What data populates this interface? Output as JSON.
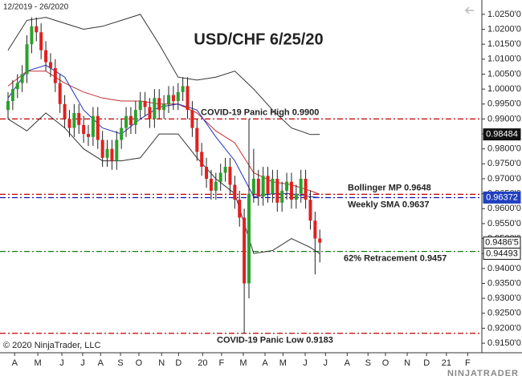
{
  "header": {
    "period": "12/2019 - 26/2020",
    "copyright": "© 2020 NinjaTrader, LLC",
    "logo": "NINJATRADER"
  },
  "chart_data": {
    "type": "candlestick",
    "title": "USD/CHF 6/25/20",
    "up_color": "#2ca02c",
    "down_color": "#e02020",
    "x": [
      12,
      13,
      14,
      15,
      16,
      17,
      18,
      19,
      20,
      21,
      22,
      23,
      24,
      25,
      26,
      27,
      28,
      29,
      30,
      31,
      32,
      33,
      34,
      35,
      36,
      37,
      38,
      39,
      40,
      41,
      42,
      43,
      44,
      45,
      46,
      47,
      48,
      49,
      50,
      51,
      52,
      53,
      54,
      55,
      56,
      57,
      58,
      59,
      60,
      61,
      62,
      63,
      64,
      65,
      66,
      67,
      68,
      69,
      70,
      71,
      72,
      73,
      74,
      75,
      76,
      77,
      78
    ],
    "open": [
      0.993,
      0.996,
      1.0,
      1.002,
      1.005,
      1.015,
      1.021,
      1.019,
      1.013,
      1.009,
      1.007,
      1.002,
      0.995,
      0.99,
      0.987,
      0.992,
      0.988,
      0.985,
      0.984,
      0.991,
      0.983,
      0.977,
      0.98,
      0.976,
      0.983,
      0.987,
      0.991,
      0.988,
      0.993,
      0.996,
      0.994,
      0.99,
      0.997,
      0.993,
      0.995,
      0.998,
      0.996,
      0.999,
      1.001,
      0.993,
      0.987,
      0.979,
      0.974,
      0.97,
      0.966,
      0.969,
      0.972,
      0.974,
      0.968,
      0.963,
      0.957,
      0.935,
      0.965,
      0.97,
      0.964,
      0.971,
      0.965,
      0.97,
      0.962,
      0.966,
      0.969,
      0.963,
      0.965,
      0.97,
      0.963,
      0.956,
      0.95
    ],
    "high": [
      0.999,
      1.003,
      1.005,
      1.008,
      1.018,
      1.024,
      1.024,
      1.022,
      1.016,
      1.012,
      1.01,
      1.005,
      0.998,
      0.993,
      0.995,
      0.995,
      0.991,
      0.988,
      0.994,
      0.994,
      0.986,
      0.983,
      0.983,
      0.986,
      0.99,
      0.994,
      0.994,
      0.996,
      0.999,
      0.999,
      0.997,
      1.0,
      1.0,
      0.998,
      1.001,
      1.001,
      1.002,
      1.004,
      1.004,
      0.996,
      0.99,
      0.982,
      0.977,
      0.973,
      0.972,
      0.975,
      0.977,
      0.977,
      0.971,
      0.966,
      0.96,
      0.99,
      0.98,
      0.973,
      0.974,
      0.974,
      0.973,
      0.973,
      0.969,
      0.972,
      0.972,
      0.968,
      0.973,
      0.973,
      0.966,
      0.959,
      0.953
    ],
    "low": [
      0.99,
      0.993,
      0.997,
      0.999,
      1.002,
      1.012,
      1.016,
      1.01,
      1.006,
      1.004,
      0.999,
      0.992,
      0.987,
      0.984,
      0.984,
      0.985,
      0.982,
      0.981,
      0.981,
      0.98,
      0.974,
      0.974,
      0.973,
      0.973,
      0.98,
      0.984,
      0.985,
      0.985,
      0.99,
      0.991,
      0.987,
      0.987,
      0.99,
      0.99,
      0.992,
      0.993,
      0.993,
      0.996,
      0.99,
      0.984,
      0.976,
      0.971,
      0.967,
      0.963,
      0.963,
      0.966,
      0.969,
      0.965,
      0.96,
      0.954,
      0.9183,
      0.93,
      0.962,
      0.961,
      0.961,
      0.962,
      0.962,
      0.959,
      0.959,
      0.963,
      0.96,
      0.96,
      0.962,
      0.96,
      0.953,
      0.938,
      0.942
    ],
    "close": [
      0.996,
      1.0,
      1.002,
      1.005,
      1.015,
      1.021,
      1.019,
      1.013,
      1.009,
      1.007,
      1.002,
      0.995,
      0.99,
      0.987,
      0.992,
      0.988,
      0.985,
      0.984,
      0.991,
      0.983,
      0.977,
      0.98,
      0.976,
      0.983,
      0.987,
      0.991,
      0.988,
      0.993,
      0.996,
      0.994,
      0.99,
      0.997,
      0.993,
      0.995,
      0.998,
      0.996,
      0.999,
      1.001,
      0.993,
      0.987,
      0.979,
      0.974,
      0.97,
      0.966,
      0.969,
      0.972,
      0.974,
      0.968,
      0.963,
      0.957,
      0.935,
      0.965,
      0.97,
      0.964,
      0.971,
      0.965,
      0.97,
      0.962,
      0.966,
      0.969,
      0.963,
      0.965,
      0.97,
      0.963,
      0.956,
      0.95,
      0.94865
    ],
    "lines": [
      {
        "color": "#333333",
        "x": [
          12,
          16,
          20,
          24,
          28,
          32,
          36,
          40,
          44,
          48,
          52,
          56,
          60,
          64,
          68,
          72,
          76,
          78
        ],
        "values": [
          1.013,
          1.023,
          1.024,
          1.022,
          1.02,
          1.021,
          1.023,
          1.025,
          1.015,
          1.004,
          1.003,
          1.004,
          1.006,
          1.0,
          0.993,
          0.987,
          0.9848,
          0.98484
        ]
      },
      {
        "color": "#333333",
        "x": [
          12,
          16,
          20,
          24,
          28,
          32,
          36,
          40,
          44,
          48,
          52,
          56,
          60,
          64,
          68,
          72,
          76,
          78
        ],
        "values": [
          0.99,
          0.986,
          0.992,
          0.987,
          0.98,
          0.976,
          0.976,
          0.977,
          0.985,
          0.985,
          0.977,
          0.97,
          0.965,
          0.945,
          0.946,
          0.95,
          0.947,
          0.94493
        ]
      },
      {
        "color": "#c03030",
        "x": [
          12,
          16,
          20,
          24,
          28,
          32,
          36,
          40,
          44,
          48,
          52,
          56,
          60,
          64,
          68,
          72,
          76,
          78
        ],
        "values": [
          1.001,
          1.006,
          1.006,
          1.002,
          0.999,
          0.997,
          0.996,
          0.996,
          0.995,
          0.995,
          0.992,
          0.986,
          0.982,
          0.972,
          0.969,
          0.968,
          0.966,
          0.9648
        ]
      },
      {
        "color": "#2030c0",
        "x": [
          12,
          16,
          20,
          24,
          28,
          32,
          36,
          40,
          44,
          48,
          52,
          56,
          60,
          64,
          68,
          72,
          76,
          78
        ],
        "values": [
          0.997,
          1.006,
          1.008,
          1.004,
          0.993,
          0.987,
          0.985,
          0.99,
          0.994,
          0.995,
          0.993,
          0.984,
          0.976,
          0.964,
          0.965,
          0.965,
          0.964,
          0.96372
        ]
      }
    ],
    "levels": [
      {
        "value": 0.99,
        "label": "COVID-19 Panic High 0.9900",
        "color": "#c00000",
        "label_pos": "above"
      },
      {
        "value": 0.9648,
        "label": "Bollinger MP 0.9648",
        "color": "#c00000",
        "label_pos": "above"
      },
      {
        "value": 0.9637,
        "label": "Weekly SMA  0.9637",
        "color": "#1010b0",
        "label_pos": "below"
      },
      {
        "value": 0.9457,
        "label": "62% Retracement 0.9457",
        "color": "#108010",
        "label_pos": "below"
      },
      {
        "value": 0.9183,
        "label": "COVID-19 Panic Low 0.9183",
        "color": "#c00000",
        "label_pos": "below"
      }
    ],
    "price_markers": [
      {
        "value": 0.98484,
        "label": "0.98484",
        "style": "dark"
      },
      {
        "value": 0.96372,
        "label": "0.96372",
        "style": "blue"
      },
      {
        "value": 0.94865,
        "label": "0.9486'5",
        "style": "light"
      },
      {
        "value": 0.94493,
        "label": "0.94493",
        "style": "light"
      }
    ],
    "xlim": [
      10.3,
      112.3
    ],
    "ylim": [
      0.9118,
      1.0298
    ],
    "xticks": [
      {
        "value": 13.4,
        "label": "A"
      },
      {
        "value": 18.3,
        "label": "M"
      },
      {
        "value": 23.4,
        "label": "J"
      },
      {
        "value": 27.8,
        "label": "J"
      },
      {
        "value": 31.6,
        "label": "A"
      },
      {
        "value": 35.8,
        "label": "S"
      },
      {
        "value": 39.7,
        "label": "O"
      },
      {
        "value": 44.5,
        "label": "N"
      },
      {
        "value": 48.1,
        "label": "D"
      },
      {
        "value": 53.2,
        "label": "20"
      },
      {
        "value": 57.2,
        "label": "F"
      },
      {
        "value": 61.8,
        "label": "M"
      },
      {
        "value": 66.4,
        "label": "A"
      },
      {
        "value": 70.2,
        "label": "M"
      },
      {
        "value": 74.9,
        "label": "J"
      },
      {
        "value": 79.2,
        "label": "J"
      },
      {
        "value": 83.8,
        "label": "A"
      },
      {
        "value": 88.2,
        "label": "S"
      },
      {
        "value": 91.9,
        "label": "O"
      },
      {
        "value": 96.5,
        "label": "N"
      },
      {
        "value": 100.6,
        "label": "D"
      },
      {
        "value": 104.8,
        "label": "21"
      },
      {
        "value": 109.3,
        "label": "F"
      }
    ],
    "yticks": [
      {
        "value": 0.915,
        "label": "0.9150'0"
      },
      {
        "value": 0.92,
        "label": "0.9200'0"
      },
      {
        "value": 0.925,
        "label": "0.9250'0"
      },
      {
        "value": 0.93,
        "label": "0.9300'0"
      },
      {
        "value": 0.935,
        "label": "0.9350'0"
      },
      {
        "value": 0.94,
        "label": "0.9400'0"
      },
      {
        "value": 0.945,
        "label": "0.9450'0"
      },
      {
        "value": 0.95,
        "label": "0.9500'0"
      },
      {
        "value": 0.955,
        "label": "0.9550'0"
      },
      {
        "value": 0.96,
        "label": "0.9600'0"
      },
      {
        "value": 0.965,
        "label": "0.9650'0"
      },
      {
        "value": 0.97,
        "label": "0.9700'0"
      },
      {
        "value": 0.975,
        "label": "0.9750'0"
      },
      {
        "value": 0.98,
        "label": "0.9800'0"
      },
      {
        "value": 0.985,
        "label": "0.9850'0"
      },
      {
        "value": 0.99,
        "label": "0.9900'0"
      },
      {
        "value": 0.995,
        "label": "0.9950'0"
      },
      {
        "value": 1.0,
        "label": "1.0000'0"
      },
      {
        "value": 1.005,
        "label": "1.0050'0"
      },
      {
        "value": 1.01,
        "label": "1.0100'0"
      },
      {
        "value": 1.015,
        "label": "1.0150'0"
      },
      {
        "value": 1.02,
        "label": "1.0200'0"
      },
      {
        "value": 1.025,
        "label": "1.0250'0"
      }
    ]
  }
}
